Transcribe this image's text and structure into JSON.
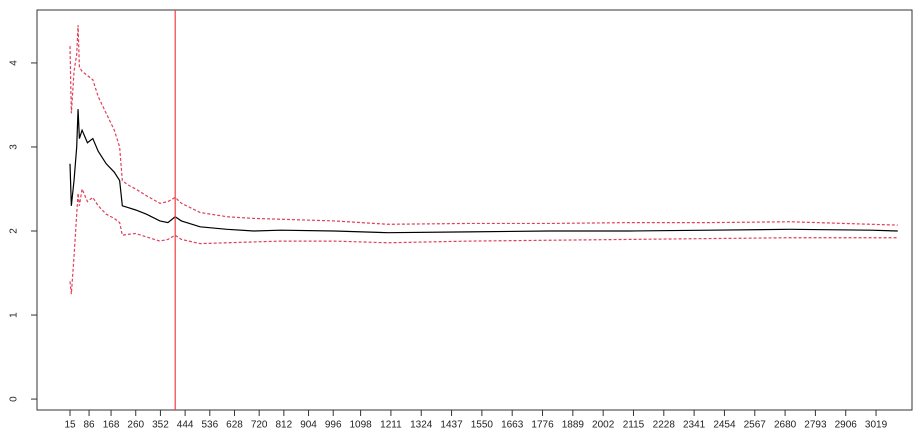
{
  "chart_data": {
    "type": "line",
    "x": [
      15,
      20,
      30,
      40,
      45,
      50,
      60,
      80,
      100,
      120,
      150,
      180,
      200,
      210,
      230,
      260,
      300,
      350,
      380,
      407,
      430,
      500,
      600,
      700,
      800,
      1000,
      1200,
      1500,
      1800,
      2100,
      2400,
      2700,
      3000,
      3100
    ],
    "series": [
      {
        "color": "#000000",
        "dashed": false,
        "values": [
          2.8,
          2.3,
          2.6,
          3.0,
          3.45,
          3.1,
          3.2,
          3.05,
          3.1,
          2.95,
          2.8,
          2.7,
          2.6,
          2.3,
          2.28,
          2.25,
          2.2,
          2.12,
          2.1,
          2.17,
          2.12,
          2.05,
          2.02,
          2.0,
          2.01,
          2.0,
          1.98,
          1.99,
          2.0,
          2.0,
          2.01,
          2.02,
          2.01,
          2.0
        ]
      },
      {
        "color": "#e0405a",
        "dashed": true,
        "values": [
          4.2,
          3.4,
          3.9,
          4.1,
          4.45,
          3.95,
          3.9,
          3.85,
          3.8,
          3.6,
          3.4,
          3.2,
          3.0,
          2.6,
          2.55,
          2.5,
          2.42,
          2.33,
          2.35,
          2.4,
          2.33,
          2.22,
          2.17,
          2.15,
          2.14,
          2.12,
          2.08,
          2.09,
          2.09,
          2.1,
          2.1,
          2.11,
          2.08,
          2.07
        ]
      },
      {
        "color": "#e0405a",
        "dashed": true,
        "values": [
          1.4,
          1.25,
          1.7,
          2.2,
          2.45,
          2.3,
          2.5,
          2.35,
          2.4,
          2.3,
          2.2,
          2.15,
          2.1,
          1.95,
          1.96,
          1.97,
          1.93,
          1.88,
          1.9,
          1.95,
          1.9,
          1.85,
          1.86,
          1.87,
          1.88,
          1.88,
          1.86,
          1.88,
          1.89,
          1.9,
          1.91,
          1.92,
          1.92,
          1.92
        ]
      }
    ],
    "vline": {
      "x": 407,
      "color": "#f04040"
    },
    "xlim": [
      -108,
      3153
    ],
    "xticks": [
      15,
      86,
      168,
      260,
      352,
      444,
      536,
      628,
      720,
      812,
      904,
      996,
      1098,
      1211,
      1324,
      1437,
      1550,
      1663,
      1776,
      1889,
      2002,
      2115,
      2228,
      2341,
      2454,
      2567,
      2680,
      2793,
      2906,
      3019
    ],
    "ylim": [
      -0.13,
      4.63
    ],
    "yticks": [
      0,
      1,
      2,
      3,
      4
    ],
    "grid": false
  }
}
